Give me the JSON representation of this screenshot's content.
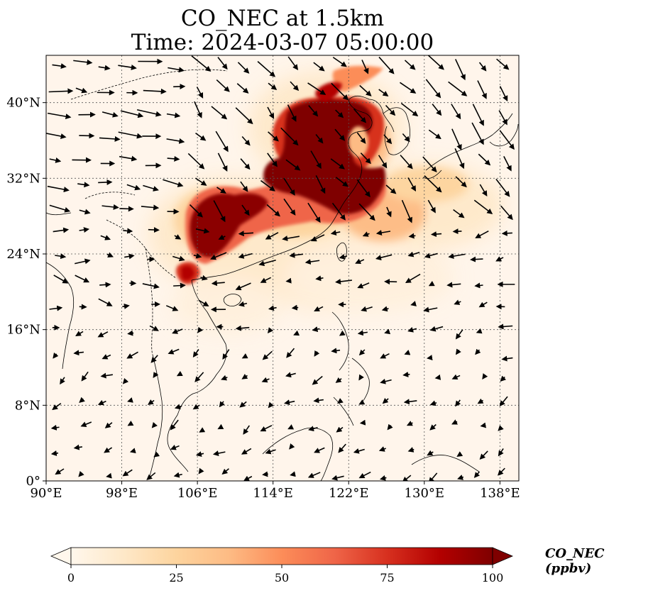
{
  "title": {
    "line1": "CO_NEC at 1.5km",
    "line2": "Time: 2024-03-07 05:00:00"
  },
  "map": {
    "lon_range": [
      90,
      140
    ],
    "lat_range": [
      0,
      45
    ],
    "lon_ticks": [
      90,
      98,
      106,
      114,
      122,
      130,
      138
    ],
    "lon_tick_labels": [
      "90°E",
      "98°E",
      "106°E",
      "114°E",
      "122°E",
      "130°E",
      "138°E"
    ],
    "lat_ticks": [
      0,
      8,
      16,
      24,
      32,
      40
    ],
    "lat_tick_labels": [
      "0°",
      "8°N",
      "16°N",
      "24°N",
      "32°N",
      "40°N"
    ],
    "gridlines": "dotted",
    "background_color": "#fff5eb",
    "coastline_color": "#000000",
    "high_concentration_color": "#7f0000",
    "wind_arrows": "black quiver arrows (wind field)"
  },
  "colorbar": {
    "label": "CO_NEC (ppbv)",
    "range": [
      0,
      100
    ],
    "ticks": [
      0,
      25,
      50,
      75,
      100
    ],
    "tick_labels": [
      "0",
      "25",
      "50",
      "75",
      "100"
    ],
    "colormap": "OrRd",
    "colors": [
      "#fff7ec",
      "#fee8c8",
      "#fdd49e",
      "#fdbb84",
      "#fc8d59",
      "#ef6548",
      "#d7301f",
      "#b30000",
      "#7f0000"
    ],
    "extend": "both"
  }
}
